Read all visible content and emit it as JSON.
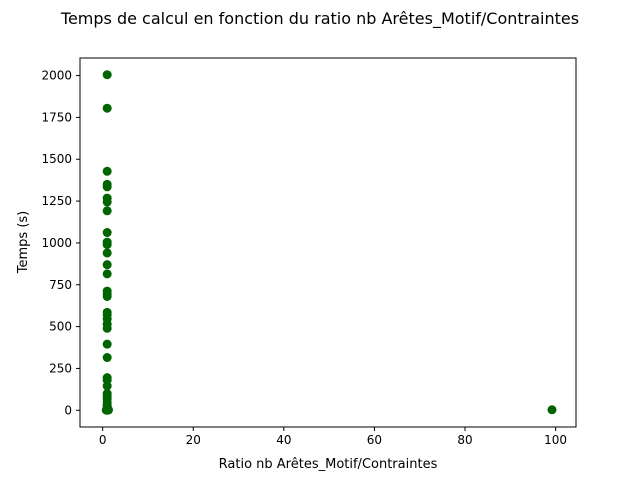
{
  "chart_data": {
    "type": "scatter",
    "title": "Temps de calcul en fonction du ratio nb Arêtes_Motif/Contraintes",
    "xlabel": "Ratio nb Arêtes_Motif/Contraintes",
    "ylabel": "Temps (s)",
    "xlim": [
      -5,
      104.5
    ],
    "ylim": [
      -100,
      2105
    ],
    "xticks": [
      0,
      20,
      40,
      60,
      80,
      100
    ],
    "yticks": [
      0,
      250,
      500,
      750,
      1000,
      1250,
      1500,
      1750,
      2000
    ],
    "grid": false,
    "marker_color": "#006400",
    "series": [
      {
        "points": [
          [
            1,
            2005
          ],
          [
            1,
            1805
          ],
          [
            1,
            1428
          ],
          [
            1,
            1350
          ],
          [
            1,
            1335
          ],
          [
            1,
            1268
          ],
          [
            1,
            1245
          ],
          [
            1,
            1192
          ],
          [
            1,
            1062
          ],
          [
            1,
            1005
          ],
          [
            1,
            990
          ],
          [
            1,
            940
          ],
          [
            1,
            870
          ],
          [
            1,
            815
          ],
          [
            1,
            712
          ],
          [
            1,
            695
          ],
          [
            1,
            680
          ],
          [
            1,
            585
          ],
          [
            1,
            570
          ],
          [
            1,
            545
          ],
          [
            1,
            515
          ],
          [
            1,
            490
          ],
          [
            1,
            395
          ],
          [
            1,
            315
          ],
          [
            1,
            195
          ],
          [
            1,
            180
          ],
          [
            1,
            145
          ],
          [
            1,
            100
          ],
          [
            1,
            85
          ],
          [
            1,
            70
          ],
          [
            1,
            50
          ],
          [
            1,
            35
          ],
          [
            1,
            25
          ],
          [
            1,
            15
          ],
          [
            1,
            8
          ],
          [
            1,
            3
          ],
          [
            1,
            0
          ],
          [
            1.2,
            5
          ],
          [
            1.3,
            2
          ],
          [
            0.8,
            1
          ],
          [
            99.2,
            3
          ]
        ]
      }
    ]
  }
}
